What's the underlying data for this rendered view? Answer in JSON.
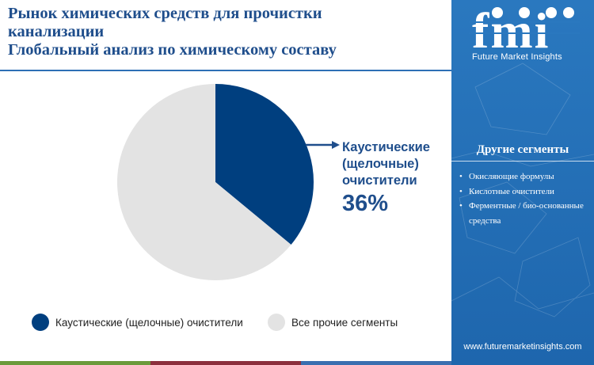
{
  "title": {
    "lines": [
      "Рынок химических средств для прочистки",
      "канализации",
      "Глобальный анализ по химическому составу"
    ]
  },
  "chart_data": {
    "type": "pie",
    "title": "Рынок химических средств для прочистки канализации Глобальный анализ по химическому составу",
    "slices": [
      {
        "label": "Каустические (щелочные) очистители",
        "value": 36,
        "color": "#003f7f"
      },
      {
        "label": "Все прочие сегменты",
        "value": 64,
        "color": "#e3e3e3"
      }
    ],
    "callout": {
      "label_lines": [
        "Каустические",
        "(щелочные)",
        "очистители"
      ],
      "value_text": "36%"
    },
    "legend": [
      {
        "label": "Каустические (щелочные) очистители",
        "color": "#003f7f"
      },
      {
        "label": "Все прочие сегменты",
        "color": "#e3e3e3"
      }
    ],
    "legend_position": "bottom"
  },
  "sidebar": {
    "logo_text": "fmi",
    "logo_subtitle": "Future Market Insights",
    "segments_title": "Другие сегменты",
    "segments": [
      "Окисляющие формулы",
      "Кислотные очистители",
      "Ферментные / био-основанные средства"
    ],
    "website": "www.futuremarketinsights.com"
  },
  "colors": {
    "brand_blue": "#1f4e8c",
    "sidebar_blue": "#2a78bf",
    "bottom_bar": [
      "#6b9a3a",
      "#8c2f3d",
      "#3a6fb0"
    ]
  }
}
